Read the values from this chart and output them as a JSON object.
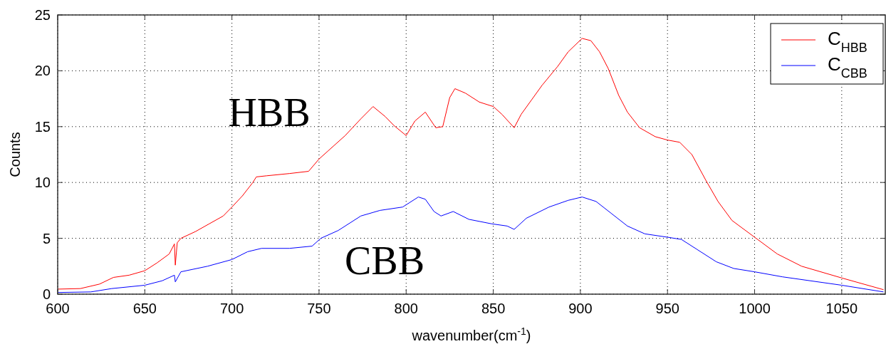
{
  "chart_data": {
    "type": "line",
    "xlabel": "wavenumber(cm$^{-1}$)",
    "ylabel": "Counts",
    "xlim": [
      600,
      1075
    ],
    "xticks": [
      600,
      650,
      700,
      750,
      800,
      850,
      900,
      950,
      1000,
      1050
    ],
    "ylim": [
      0,
      25
    ],
    "yticks": [
      0,
      5,
      10,
      15,
      20,
      25
    ],
    "grid": true,
    "legend": "top right",
    "marker": "none",
    "line_style": "solid",
    "series": [
      {
        "name": "C$_{HBB}$",
        "color": "#ff0000",
        "x": [
          600,
          613,
          624,
          632,
          641,
          650,
          657,
          664,
          667,
          667.5,
          668.6,
          670.7,
          679,
          687,
          695,
          700,
          706,
          712,
          714,
          720,
          733,
          744,
          750,
          755,
          765,
          774,
          781,
          788,
          793,
          800,
          805,
          811,
          817,
          821,
          825,
          828,
          834,
          842,
          850,
          855,
          862,
          866,
          872,
          878,
          887,
          893,
          901,
          906,
          911,
          916,
          922,
          927,
          934,
          943,
          950,
          957,
          964,
          972,
          979,
          987,
          1000,
          1013,
          1027,
          1050,
          1074
        ],
        "values": [
          0.45,
          0.5,
          0.9,
          1.5,
          1.7,
          2.1,
          2.8,
          3.6,
          4.5,
          2.6,
          4.6,
          5.0,
          5.6,
          6.3,
          7.0,
          7.8,
          8.8,
          10.0,
          10.5,
          10.6,
          10.8,
          11.0,
          12.1,
          12.8,
          14.2,
          15.7,
          16.8,
          15.9,
          15.1,
          14.2,
          15.5,
          16.3,
          14.9,
          15.0,
          17.6,
          18.4,
          18.0,
          17.2,
          16.8,
          16.1,
          14.9,
          16.1,
          17.4,
          18.7,
          20.4,
          21.7,
          22.9,
          22.7,
          21.7,
          20.2,
          17.8,
          16.3,
          14.9,
          14.1,
          13.8,
          13.6,
          12.5,
          10.2,
          8.3,
          6.6,
          5.1,
          3.6,
          2.5,
          1.45,
          0.4
        ]
      },
      {
        "name": "C$_{CBB}$",
        "color": "#0000ff",
        "x": [
          600,
          619,
          631,
          650,
          660,
          667,
          667.5,
          670.7,
          686,
          700,
          709,
          717,
          733,
          746,
          751,
          761,
          774,
          785,
          798,
          807,
          811,
          816,
          820,
          827,
          836,
          849,
          858,
          862,
          869,
          882,
          893,
          901,
          909,
          918,
          927,
          937,
          950,
          958,
          967,
          978,
          988,
          1000,
          1016,
          1050,
          1074
        ],
        "values": [
          0.15,
          0.2,
          0.5,
          0.8,
          1.2,
          1.7,
          1.1,
          2.0,
          2.5,
          3.1,
          3.8,
          4.1,
          4.1,
          4.3,
          5.0,
          5.7,
          7.0,
          7.5,
          7.8,
          8.7,
          8.5,
          7.4,
          7.0,
          7.4,
          6.7,
          6.3,
          6.1,
          5.8,
          6.8,
          7.8,
          8.4,
          8.7,
          8.3,
          7.2,
          6.1,
          5.4,
          5.1,
          4.9,
          4.0,
          2.9,
          2.3,
          2.0,
          1.55,
          0.8,
          0.2
        ]
      }
    ],
    "annotations": [
      "HBB",
      "CBB"
    ]
  }
}
